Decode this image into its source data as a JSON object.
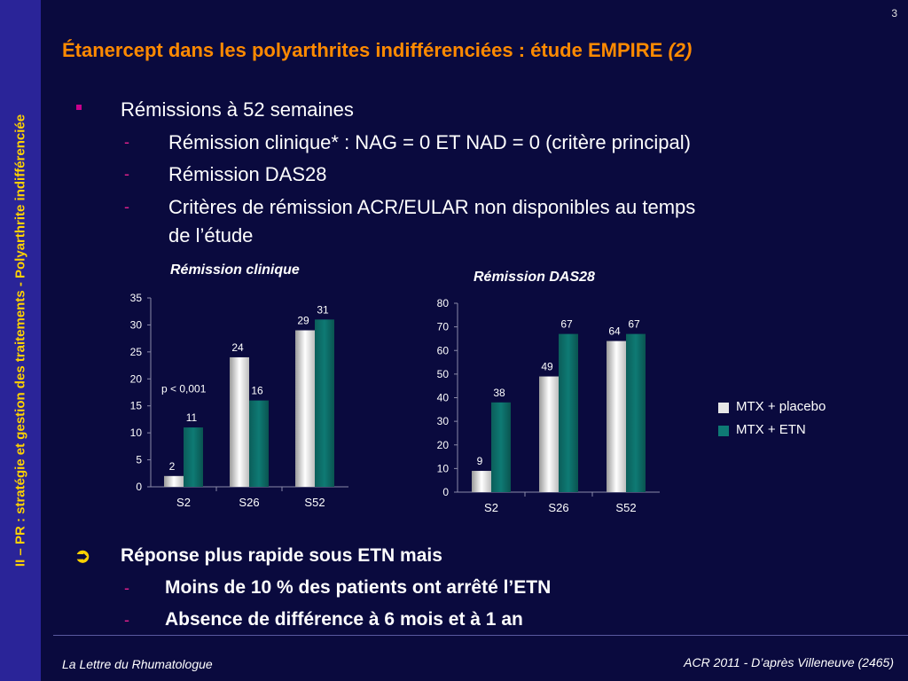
{
  "page_number": "3",
  "sidebar": {
    "text": "II – PR : stratégie et gestion des traitements - Polyarthrite indifférenciée"
  },
  "title": {
    "main": "Étanercept dans les polyarthrites indifférenciées : étude EMPIRE",
    "suffix": "(2)"
  },
  "bullets": {
    "b1": "Rémissions à 52 semaines",
    "b1_sub": [
      "Rémission clinique* : NAG = 0 ET NAD = 0 (critère principal)",
      "Rémission DAS28",
      "Critères de rémission ACR/EULAR non disponibles au temps",
      "de l’étude"
    ],
    "b2": "Réponse plus rapide sous ETN mais",
    "b2_sub": [
      "Moins de 10 % des patients ont arrêté l’ETN",
      "Absence de différence à 6 mois et à 1 an"
    ]
  },
  "colors": {
    "placebo": "#e6e6e6",
    "etn": "#0e7a74",
    "title": "#ff8a00",
    "sidebar_text": "#ffd200"
  },
  "chart_data": [
    {
      "type": "bar",
      "title": "Rémission clinique",
      "categories": [
        "S2",
        "S26",
        "S52"
      ],
      "series": [
        {
          "name": "MTX + placebo",
          "values": [
            2,
            24,
            29
          ]
        },
        {
          "name": "MTX + ETN",
          "values": [
            11,
            16,
            31
          ]
        }
      ],
      "ylim": [
        0,
        35
      ],
      "yticks": [
        0,
        5,
        10,
        15,
        20,
        25,
        30,
        35
      ],
      "annotation": "p < 0,001"
    },
    {
      "type": "bar",
      "title": "Rémission DAS28",
      "categories": [
        "S2",
        "S26",
        "S52"
      ],
      "series": [
        {
          "name": "MTX + placebo",
          "values": [
            9,
            49,
            64
          ]
        },
        {
          "name": "MTX + ETN",
          "values": [
            38,
            67,
            67
          ]
        }
      ],
      "ylim": [
        0,
        80
      ],
      "yticks": [
        0,
        10,
        20,
        30,
        40,
        50,
        60,
        70,
        80
      ],
      "legend": "right"
    }
  ],
  "legend": {
    "items": [
      "MTX + placebo",
      "MTX + ETN"
    ]
  },
  "footer": {
    "left": "La Lettre du Rhumatologue",
    "right": "ACR 2011 - D’après Villeneuve (2465)"
  }
}
